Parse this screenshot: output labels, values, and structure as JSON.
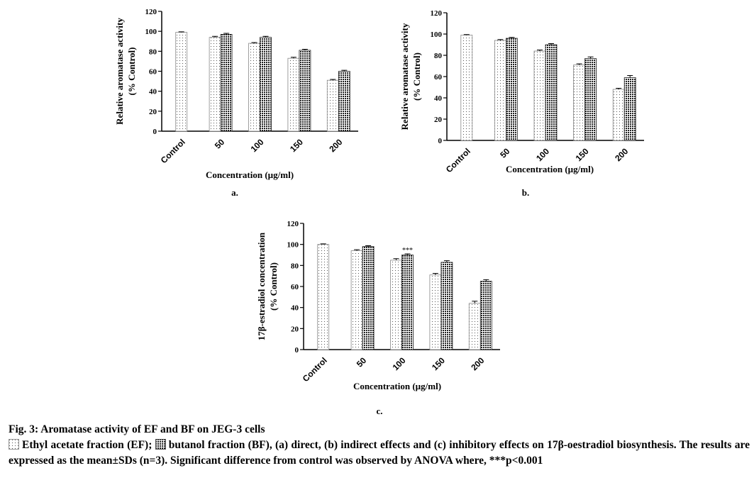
{
  "chart_data": [
    {
      "type": "bar",
      "label": "a.",
      "xlabel": "Concentration (µg/ml)",
      "ylabel": [
        "Relative aromatase activity",
        "(% Control)"
      ],
      "categories": [
        "Control",
        "50",
        "100",
        "150",
        "200"
      ],
      "series": [
        {
          "pattern": "dots",
          "values": [
            99,
            94,
            88,
            73,
            51
          ],
          "errors": [
            0.5,
            1,
            0.8,
            1,
            0.8
          ]
        },
        {
          "pattern": "checker",
          "values": [
            null,
            97,
            94,
            81,
            60
          ],
          "errors": [
            null,
            1,
            1,
            1,
            1
          ]
        }
      ],
      "ylim": [
        0,
        120
      ],
      "yticks": [
        0,
        20,
        40,
        60,
        80,
        100,
        120
      ]
    },
    {
      "type": "bar",
      "label": "b.",
      "xlabel": "Concentration (µg/ml)",
      "ylabel": [
        "Relative aromatase activity",
        "(% Control)"
      ],
      "categories": [
        "Control",
        "50",
        "100",
        "150",
        "200"
      ],
      "series": [
        {
          "pattern": "dots",
          "values": [
            99,
            94,
            84,
            71,
            48
          ],
          "errors": [
            0.5,
            0.8,
            1,
            1,
            1
          ]
        },
        {
          "pattern": "checker",
          "values": [
            null,
            96,
            90,
            77,
            59
          ],
          "errors": [
            null,
            0.8,
            1,
            1.5,
            2
          ]
        }
      ],
      "ylim": [
        0,
        120
      ],
      "yticks": [
        0,
        20,
        40,
        60,
        80,
        100,
        120
      ]
    },
    {
      "type": "bar",
      "label": "c.",
      "xlabel": "Concentration (µg/ml)",
      "ylabel": [
        "17β-estradiol concentration",
        "(% Control)"
      ],
      "categories": [
        "Control",
        "50",
        "100",
        "150",
        "200"
      ],
      "series": [
        {
          "pattern": "dots",
          "values": [
            100,
            94,
            85,
            71,
            44
          ],
          "errors": [
            0.5,
            1,
            1.5,
            1.5,
            2
          ]
        },
        {
          "pattern": "checker",
          "values": [
            null,
            98,
            90,
            83,
            65
          ],
          "errors": [
            null,
            0.8,
            1,
            1.5,
            1.5
          ]
        }
      ],
      "annotation": {
        "text": "***",
        "category": "100"
      },
      "ylim": [
        0,
        120
      ],
      "yticks": [
        0,
        20,
        40,
        60,
        80,
        100,
        120
      ]
    }
  ],
  "caption": {
    "title": "Fig. 3: Aromatase activity of EF and BF on JEG-3 cells",
    "legend": [
      "Ethyl acetate fraction (EF);",
      "butanol fraction (BF), (a) direct, (b) indirect effects and (c) inhibitory effects on 17β-oestradiol biosynthesis. The results are expressed as the mean±SDs (n=3). Significant difference from control was observed by ANOVA where, ***p<0.001"
    ]
  }
}
